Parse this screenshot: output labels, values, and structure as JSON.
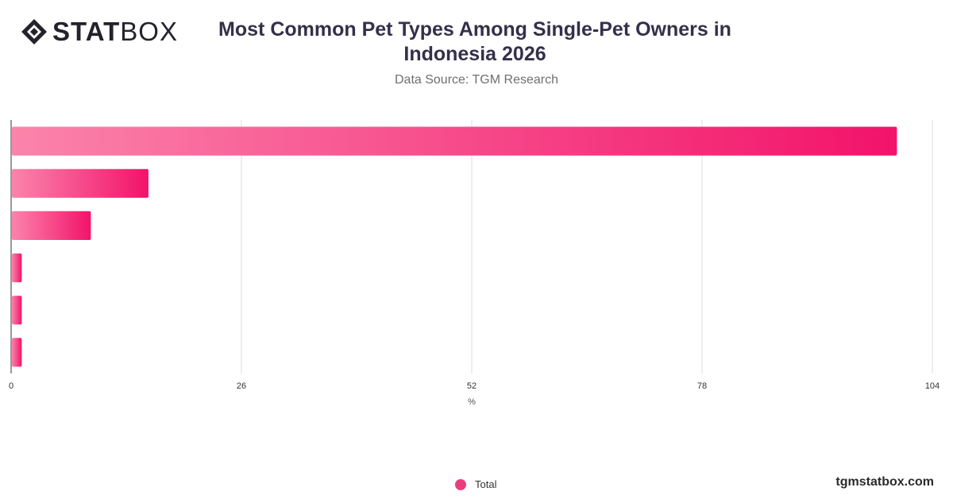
{
  "brand": {
    "logo_bold": "STAT",
    "logo_light": "BOX",
    "website": "tgmstatbox.com"
  },
  "chart_data": {
    "type": "bar",
    "orientation": "horizontal",
    "title": "Most Common Pet Types Among Single-Pet Owners in Indonesia 2026",
    "subtitle": "Data Source: TGM Research",
    "xlabel": "%",
    "ylabel": "",
    "xlim": [
      0,
      104
    ],
    "x_ticks": [
      "0",
      "26",
      "52",
      "78",
      "104"
    ],
    "categories": [
      "",
      "",
      "",
      "",
      "",
      ""
    ],
    "series": [
      {
        "name": "Total",
        "values": [
          100,
          15.5,
          9,
          1.2,
          1.2,
          1.2
        ]
      }
    ],
    "colors": {
      "bar_start": "#fb84ab",
      "bar_end": "#f2136a",
      "legend": "#ee3d7f",
      "grid": "#dddddd",
      "axis": "#333333"
    },
    "grid": true,
    "legend_position": "bottom-center"
  }
}
